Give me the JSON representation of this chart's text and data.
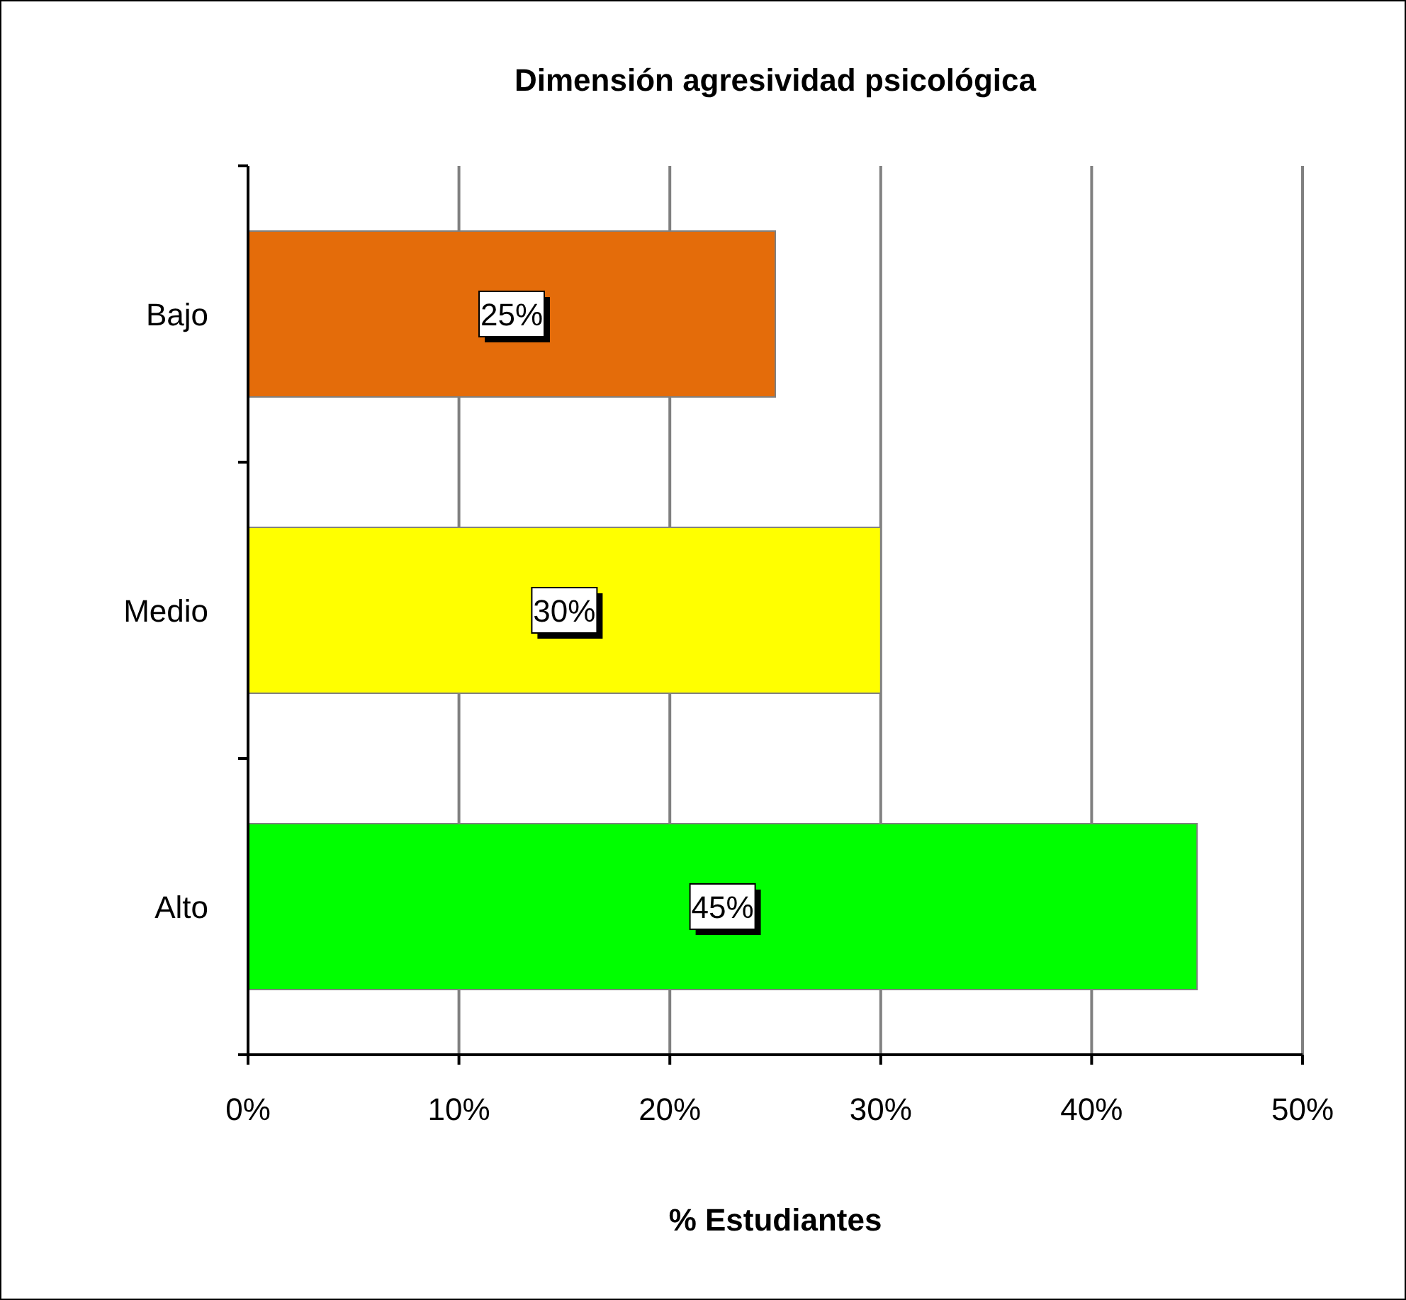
{
  "chart_data": {
    "type": "bar",
    "orientation": "horizontal",
    "title": "Dimensión agresividad psicológica",
    "xlabel": "% Estudiantes",
    "categories": [
      "Bajo",
      "Medio",
      "Alto"
    ],
    "values": [
      25,
      30,
      45
    ],
    "colors": [
      "#e46c0a",
      "#ffff00",
      "#00ff00"
    ],
    "value_labels": [
      "25%",
      "30%",
      "45%"
    ],
    "xlim": [
      0,
      50
    ],
    "xticks": [
      {
        "value": 0,
        "label": "0%"
      },
      {
        "value": 10,
        "label": "10%"
      },
      {
        "value": 20,
        "label": "20%"
      },
      {
        "value": 30,
        "label": "30%"
      },
      {
        "value": 40,
        "label": "40%"
      },
      {
        "value": 50,
        "label": "50%"
      }
    ],
    "grid": "x"
  }
}
